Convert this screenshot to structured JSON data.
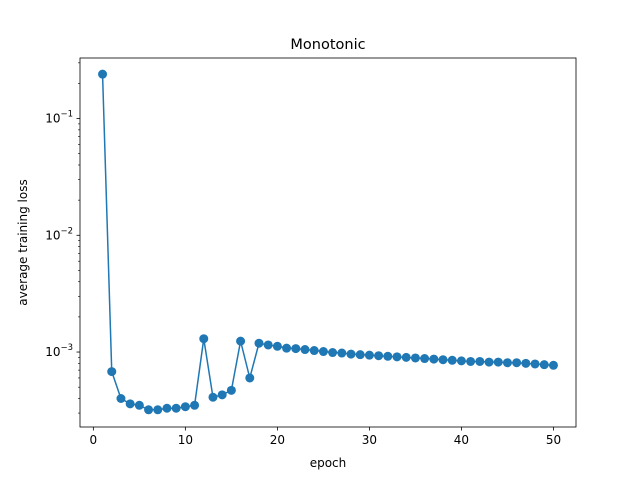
{
  "chart_data": {
    "type": "line",
    "title": "Monotonic",
    "xlabel": "epoch",
    "ylabel": "average training loss",
    "yscale": "log",
    "xlim": [
      -1.45,
      52.45
    ],
    "ylim": [
      0.000228,
      0.33
    ],
    "xticks": [
      {
        "value": 0,
        "label": "0"
      },
      {
        "value": 10,
        "label": "10"
      },
      {
        "value": 20,
        "label": "20"
      },
      {
        "value": 30,
        "label": "30"
      },
      {
        "value": 40,
        "label": "40"
      },
      {
        "value": 50,
        "label": "50"
      }
    ],
    "yticks": [
      {
        "value": 0.001,
        "base": "10",
        "exp": "−3"
      },
      {
        "value": 0.01,
        "base": "10",
        "exp": "−2"
      },
      {
        "value": 0.1,
        "base": "10",
        "exp": "−1"
      }
    ],
    "grid": false,
    "color": "#1f77b4",
    "marker": "circle",
    "series": [
      {
        "x": [
          1,
          2,
          3,
          4,
          5,
          6,
          7,
          8,
          9,
          10,
          11,
          12,
          13,
          14,
          15,
          16,
          17,
          18,
          19,
          20,
          21,
          22,
          23,
          24,
          25,
          26,
          27,
          28,
          29,
          30,
          31,
          32,
          33,
          34,
          35,
          36,
          37,
          38,
          39,
          40,
          41,
          42,
          43,
          44,
          45,
          46,
          47,
          48,
          49,
          50
        ],
        "y": [
          0.24,
          0.00068,
          0.0004,
          0.00036,
          0.00035,
          0.00032,
          0.00032,
          0.00033,
          0.00033,
          0.00034,
          0.00035,
          0.0013,
          0.00041,
          0.00043,
          0.00047,
          0.00124,
          0.0006,
          0.00119,
          0.00115,
          0.00112,
          0.00108,
          0.00107,
          0.00105,
          0.00103,
          0.00101,
          0.00099,
          0.00098,
          0.00096,
          0.00095,
          0.00094,
          0.00093,
          0.00092,
          0.00091,
          0.0009,
          0.00089,
          0.00088,
          0.00087,
          0.00086,
          0.00085,
          0.00084,
          0.00083,
          0.00083,
          0.00082,
          0.00082,
          0.00081,
          0.00081,
          0.0008,
          0.00079,
          0.00078,
          0.00077
        ]
      }
    ]
  }
}
